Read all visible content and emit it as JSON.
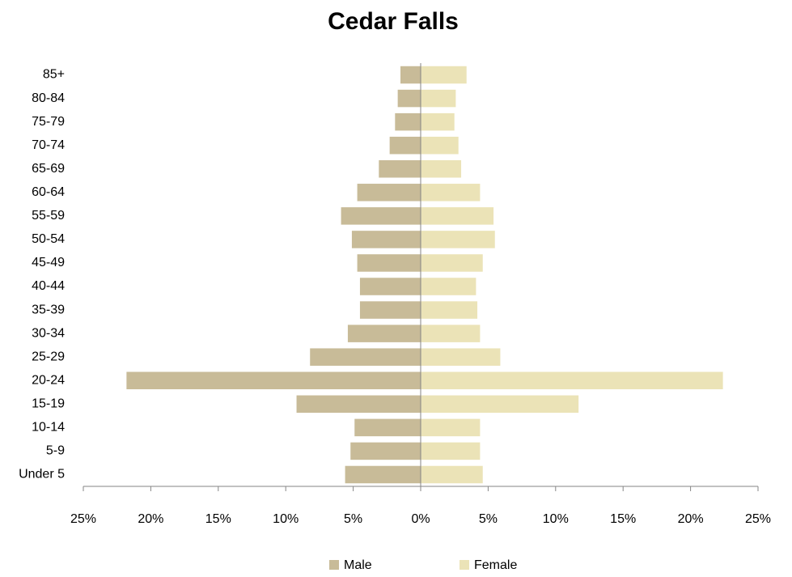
{
  "chart_data": {
    "type": "bar",
    "orientation": "horizontal",
    "title": "Cedar Falls",
    "categories": [
      "Under 5",
      "5-9",
      "10-14",
      "15-19",
      "20-24",
      "25-29",
      "30-34",
      "35-39",
      "40-44",
      "45-49",
      "50-54",
      "55-59",
      "60-64",
      "65-69",
      "70-74",
      "75-79",
      "80-84",
      "85+"
    ],
    "series": [
      {
        "name": "Male",
        "color": "#c8bb98",
        "values": [
          -5.6,
          -5.2,
          -4.9,
          -9.2,
          -21.8,
          -8.2,
          -5.4,
          -4.5,
          -4.5,
          -4.7,
          -5.1,
          -5.9,
          -4.7,
          -3.1,
          -2.3,
          -1.9,
          -1.7,
          -1.5
        ]
      },
      {
        "name": "Female",
        "color": "#ebe3b7",
        "values": [
          4.6,
          4.4,
          4.4,
          11.7,
          22.4,
          5.9,
          4.4,
          4.2,
          4.1,
          4.6,
          5.5,
          5.4,
          4.4,
          3.0,
          2.8,
          2.5,
          2.6,
          3.4
        ]
      }
    ],
    "xlim": [
      -25,
      25
    ],
    "xticks": [
      {
        "value": -25,
        "label": "25%"
      },
      {
        "value": -20,
        "label": "20%"
      },
      {
        "value": -15,
        "label": "15%"
      },
      {
        "value": -10,
        "label": "10%"
      },
      {
        "value": -5,
        "label": "5%"
      },
      {
        "value": 0,
        "label": "0%"
      },
      {
        "value": 5,
        "label": "5%"
      },
      {
        "value": 10,
        "label": "10%"
      },
      {
        "value": 15,
        "label": "15%"
      },
      {
        "value": 20,
        "label": "20%"
      },
      {
        "value": 25,
        "label": "25%"
      }
    ],
    "grid": false,
    "legend": "bottom"
  }
}
